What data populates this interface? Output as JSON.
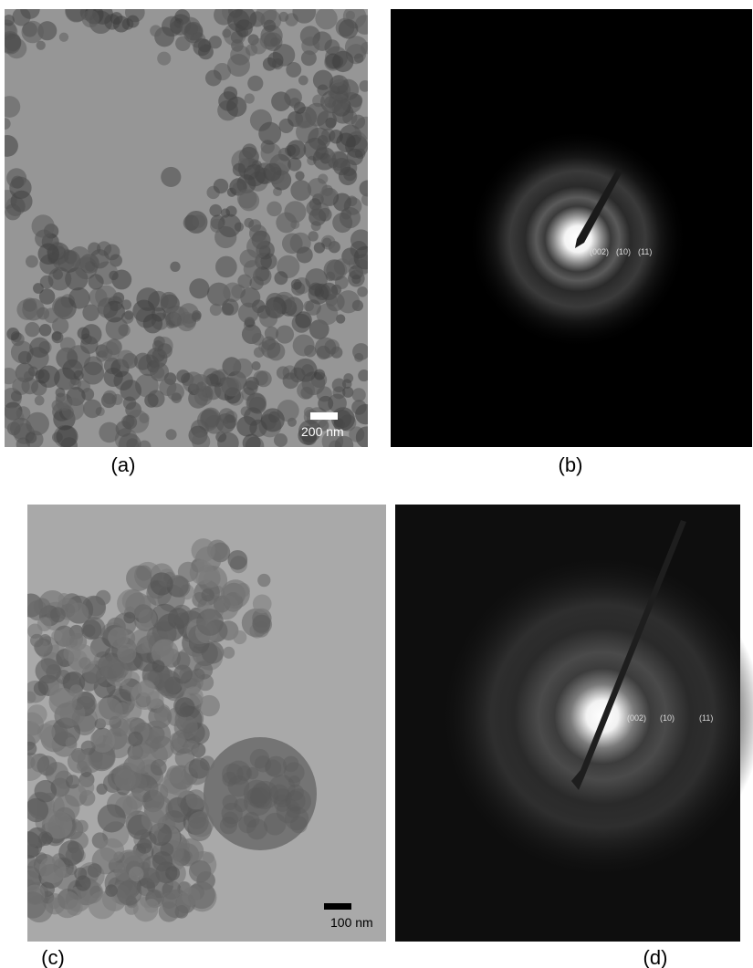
{
  "panels": [
    {
      "caption": "(a)",
      "scale_bar": "200 nm"
    },
    {
      "caption": "(b)",
      "rings": [
        "(002)",
        "(10)",
        "(11)"
      ]
    },
    {
      "caption": "(c)",
      "scale_bar": "100 nm"
    },
    {
      "caption": "(d)",
      "rings": [
        "(002)",
        "(10)",
        "(11)"
      ]
    }
  ]
}
